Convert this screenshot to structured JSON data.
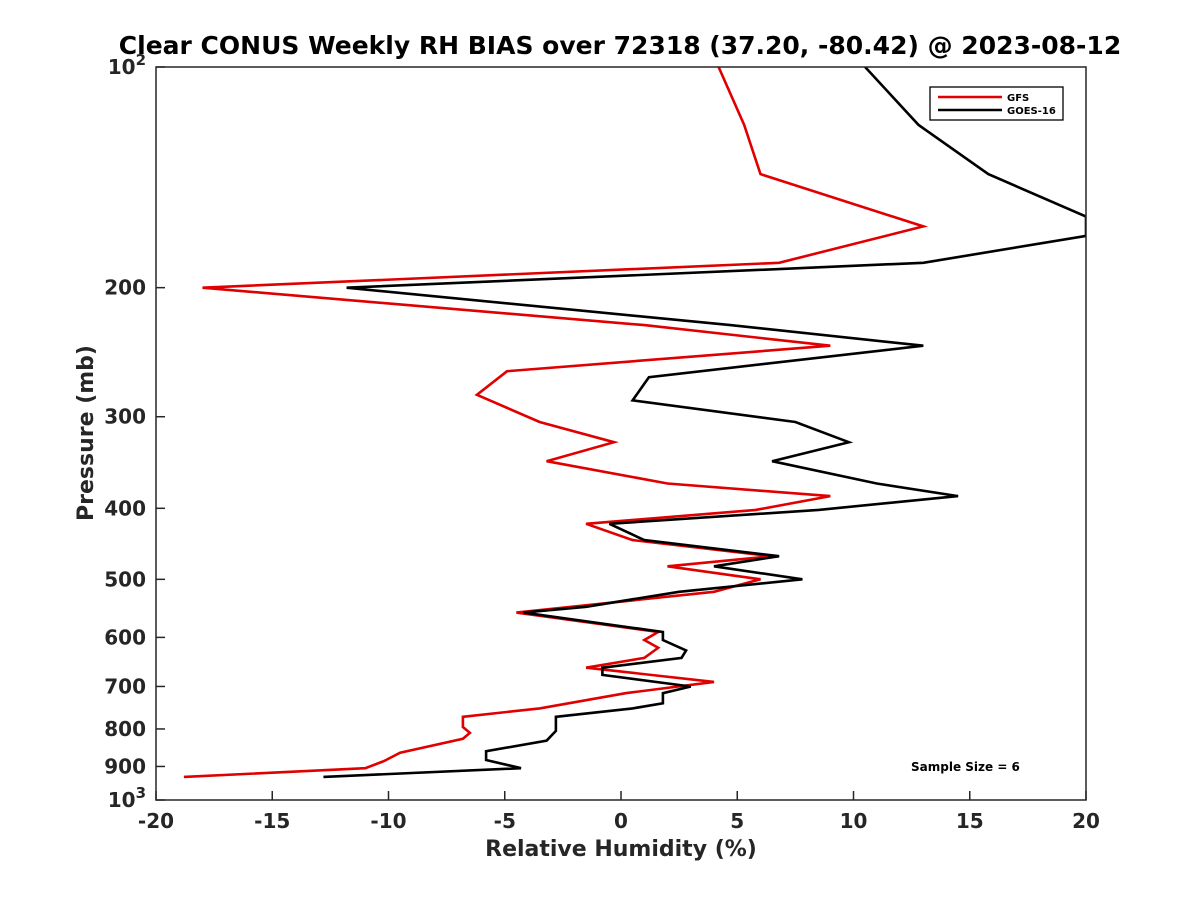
{
  "chart_data": {
    "type": "line",
    "title": "Clear CONUS Weekly RH BIAS over 72318 (37.20, -80.42) @ 2023-08-12",
    "xlabel": "Relative Humidity (%)",
    "ylabel": "Pressure (mb)",
    "xlim": [
      -20,
      20
    ],
    "ylim": [
      100,
      1000
    ],
    "y_scale": "log",
    "y_reversed": true,
    "x_ticks": [
      "-20",
      "-15",
      "-10",
      "-5",
      "0",
      "5",
      "10",
      "15",
      "20"
    ],
    "y_ticks": [
      {
        "value": 100,
        "base": "10",
        "exp": "2"
      },
      {
        "value": 200,
        "label": "200"
      },
      {
        "value": 300,
        "label": "300"
      },
      {
        "value": 400,
        "label": "400"
      },
      {
        "value": 500,
        "label": "500"
      },
      {
        "value": 600,
        "label": "600"
      },
      {
        "value": 700,
        "label": "700"
      },
      {
        "value": 800,
        "label": "800"
      },
      {
        "value": 900,
        "label": "900"
      },
      {
        "value": 1000,
        "base": "10",
        "exp": "3"
      }
    ],
    "legend_position": "top-right",
    "grid": false,
    "annotation": "Sample Size = 6",
    "series": [
      {
        "name": "GFS",
        "color": "#e00000",
        "points": [
          [
            4.2,
            100
          ],
          [
            5.3,
            120
          ],
          [
            6.0,
            140
          ],
          [
            13.0,
            165
          ],
          [
            6.8,
            185
          ],
          [
            -18.0,
            200
          ],
          [
            1.0,
            225
          ],
          [
            9.0,
            240
          ],
          [
            -4.9,
            260
          ],
          [
            -6.2,
            280
          ],
          [
            -3.5,
            305
          ],
          [
            -0.3,
            325
          ],
          [
            -3.2,
            345
          ],
          [
            2.0,
            370
          ],
          [
            9.0,
            385
          ],
          [
            5.8,
            402
          ],
          [
            -1.5,
            420
          ],
          [
            0.5,
            442
          ],
          [
            6.5,
            465
          ],
          [
            2.0,
            480
          ],
          [
            6.0,
            500
          ],
          [
            4.0,
            520
          ],
          [
            -4.5,
            555
          ],
          [
            1.6,
            590
          ],
          [
            1.0,
            605
          ],
          [
            1.6,
            620
          ],
          [
            1.0,
            640
          ],
          [
            -1.5,
            660
          ],
          [
            4.0,
            690
          ],
          [
            0.2,
            715
          ],
          [
            -3.5,
            750
          ],
          [
            -6.8,
            770
          ],
          [
            -6.8,
            795
          ],
          [
            -6.5,
            810
          ],
          [
            -6.8,
            825
          ],
          [
            -9.5,
            862
          ],
          [
            -10.2,
            885
          ],
          [
            -11.0,
            905
          ],
          [
            -18.8,
            930
          ]
        ]
      },
      {
        "name": "GOES-16",
        "color": "#000000",
        "points": [
          [
            10.5,
            100
          ],
          [
            12.8,
            120
          ],
          [
            15.8,
            140
          ],
          [
            20.0,
            160
          ],
          [
            20.0,
            170
          ],
          [
            13.0,
            185
          ],
          [
            -11.8,
            200
          ],
          [
            4.7,
            225
          ],
          [
            13.0,
            240
          ],
          [
            1.2,
            265
          ],
          [
            0.5,
            285
          ],
          [
            7.5,
            305
          ],
          [
            9.8,
            325
          ],
          [
            6.5,
            345
          ],
          [
            11.0,
            370
          ],
          [
            14.5,
            385
          ],
          [
            8.5,
            402
          ],
          [
            -0.5,
            420
          ],
          [
            1.0,
            442
          ],
          [
            6.8,
            465
          ],
          [
            4.0,
            480
          ],
          [
            7.8,
            500
          ],
          [
            2.5,
            520
          ],
          [
            -1.5,
            545
          ],
          [
            -4.2,
            555
          ],
          [
            1.8,
            590
          ],
          [
            1.8,
            605
          ],
          [
            2.8,
            625
          ],
          [
            2.6,
            640
          ],
          [
            -0.8,
            660
          ],
          [
            -0.8,
            675
          ],
          [
            3.0,
            700
          ],
          [
            1.8,
            715
          ],
          [
            1.8,
            738
          ],
          [
            0.5,
            750
          ],
          [
            -2.8,
            770
          ],
          [
            -2.8,
            805
          ],
          [
            -3.2,
            830
          ],
          [
            -5.8,
            858
          ],
          [
            -5.8,
            882
          ],
          [
            -4.3,
            905
          ],
          [
            -12.8,
            930
          ]
        ]
      }
    ]
  }
}
